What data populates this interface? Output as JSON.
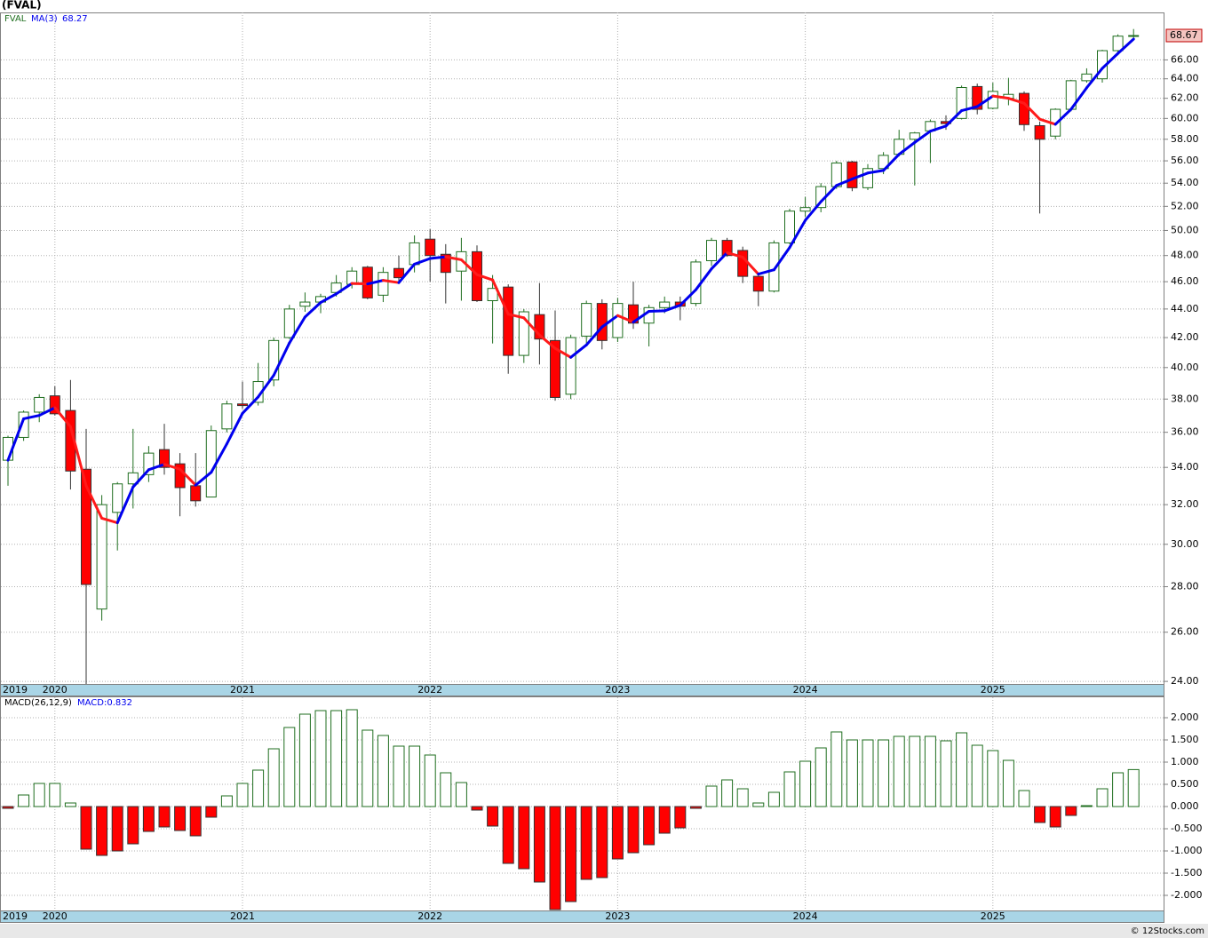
{
  "chart_data": [
    {
      "type": "candlestick",
      "title": "(FVAL)",
      "name": "FVAL",
      "log": true,
      "grid": true,
      "up_color": "#1f6e1f",
      "down_color": "#ff0000",
      "categories": [
        "2019",
        null,
        null,
        "2020",
        null,
        null,
        null,
        null,
        null,
        null,
        null,
        null,
        null,
        null,
        null,
        "2021",
        null,
        null,
        null,
        null,
        null,
        null,
        null,
        null,
        null,
        null,
        null,
        "2022",
        null,
        null,
        null,
        null,
        null,
        null,
        null,
        null,
        null,
        null,
        null,
        "2023",
        null,
        null,
        null,
        null,
        null,
        null,
        null,
        null,
        null,
        null,
        null,
        "2024",
        null,
        null,
        null,
        null,
        null,
        null,
        null,
        null,
        null,
        null,
        null,
        "2025",
        null,
        null,
        null,
        null,
        null,
        null,
        null,
        null,
        null
      ],
      "open": [
        34.4,
        35.7,
        37.2,
        38.2,
        37.3,
        33.9,
        27.0,
        31.6,
        33.1,
        33.6,
        35.0,
        34.2,
        33.0,
        32.4,
        36.2,
        37.7,
        37.8,
        39.2,
        42.0,
        44.2,
        44.5,
        45.2,
        45.8,
        47.1,
        45.0,
        47.0,
        47.3,
        49.3,
        48.1,
        46.8,
        48.3,
        44.6,
        45.6,
        40.8,
        43.6,
        41.8,
        38.3,
        42.1,
        44.4,
        42.0,
        44.3,
        43.0,
        44.1,
        44.5,
        44.4,
        47.6,
        49.2,
        48.4,
        46.4,
        45.3,
        49.0,
        51.6,
        51.9,
        53.7,
        55.9,
        53.6,
        55.3,
        56.6,
        58.0,
        58.8,
        59.7,
        60.0,
        63.2,
        61.0,
        62.0,
        62.5,
        59.3,
        58.3,
        60.9,
        63.8,
        64.0,
        67.0,
        68.6
      ],
      "high": [
        35.8,
        37.3,
        38.3,
        38.8,
        39.2,
        36.2,
        32.5,
        33.2,
        36.2,
        35.2,
        36.5,
        34.8,
        34.8,
        36.4,
        37.9,
        39.1,
        40.3,
        42.0,
        44.3,
        45.2,
        45.1,
        46.5,
        47.1,
        47.2,
        47.1,
        48.0,
        49.6,
        50.1,
        48.9,
        49.4,
        48.8,
        46.5,
        45.8,
        44.0,
        45.9,
        43.9,
        42.2,
        44.6,
        44.7,
        44.8,
        46.0,
        44.3,
        44.9,
        44.9,
        47.7,
        49.4,
        49.4,
        48.7,
        46.5,
        49.2,
        51.8,
        52.8,
        54.0,
        56.0,
        56.0,
        55.7,
        56.8,
        58.9,
        58.7,
        59.9,
        60.3,
        63.3,
        63.5,
        63.6,
        64.1,
        62.7,
        59.7,
        61.0,
        63.9,
        65.1,
        67.1,
        68.8,
        69.4
      ],
      "low": [
        33.0,
        35.5,
        36.6,
        37.0,
        32.8,
        23.9,
        26.5,
        29.7,
        31.8,
        33.2,
        33.6,
        31.4,
        31.9,
        32.4,
        36.0,
        37.4,
        37.6,
        38.8,
        41.9,
        43.8,
        43.7,
        44.9,
        45.5,
        44.7,
        44.5,
        45.9,
        46.7,
        46.0,
        44.4,
        44.6,
        44.5,
        41.6,
        39.6,
        40.3,
        40.2,
        37.9,
        38.0,
        41.6,
        41.2,
        41.7,
        42.6,
        41.4,
        43.7,
        43.2,
        44.2,
        47.2,
        47.9,
        45.9,
        44.2,
        45.2,
        48.9,
        51.1,
        51.5,
        53.5,
        53.3,
        53.4,
        54.8,
        56.4,
        53.8,
        55.8,
        58.9,
        59.9,
        60.4,
        60.9,
        61.3,
        58.8,
        51.4,
        58.0,
        60.7,
        63.6,
        63.6,
        66.5,
        68.2
      ],
      "close": [
        35.7,
        37.2,
        38.1,
        37.1,
        33.8,
        28.1,
        32.0,
        33.1,
        33.7,
        34.8,
        34.0,
        32.9,
        32.2,
        36.1,
        37.7,
        37.6,
        39.1,
        41.8,
        44.0,
        44.5,
        44.9,
        45.9,
        46.8,
        44.8,
        46.7,
        46.3,
        49.0,
        48.0,
        46.7,
        48.3,
        44.6,
        45.5,
        40.8,
        43.8,
        41.9,
        38.1,
        42.0,
        44.4,
        41.8,
        44.4,
        43.0,
        44.1,
        44.5,
        44.2,
        47.5,
        49.2,
        48.0,
        46.4,
        45.3,
        49.0,
        51.6,
        51.9,
        53.7,
        55.8,
        53.6,
        55.3,
        56.5,
        58.0,
        58.6,
        59.7,
        59.5,
        63.1,
        60.9,
        62.7,
        62.4,
        59.4,
        58.0,
        60.9,
        63.8,
        64.5,
        67.0,
        68.6,
        68.67
      ],
      "ma": {
        "name": "MA(3)",
        "up_color": "#0000ee",
        "down_color": "#ff1a1a",
        "values": [
          34.4,
          36.8,
          37.0,
          37.47,
          36.33,
          33.0,
          31.3,
          31.07,
          32.93,
          33.87,
          34.17,
          33.9,
          33.03,
          33.73,
          35.33,
          37.13,
          38.13,
          39.5,
          41.63,
          43.43,
          44.47,
          45.1,
          45.87,
          45.83,
          46.1,
          45.93,
          47.33,
          47.77,
          47.9,
          47.67,
          46.53,
          46.13,
          43.63,
          43.37,
          42.17,
          41.27,
          40.67,
          41.5,
          42.73,
          43.53,
          43.07,
          43.83,
          43.87,
          44.27,
          45.4,
          46.97,
          48.23,
          47.87,
          46.57,
          46.9,
          48.63,
          50.83,
          52.4,
          53.8,
          54.37,
          54.9,
          55.13,
          56.6,
          57.7,
          58.77,
          59.27,
          60.77,
          61.17,
          62.23,
          62.0,
          61.5,
          59.93,
          59.43,
          60.9,
          63.07,
          65.1,
          66.7,
          68.27
        ]
      },
      "ylim": [
        23.9,
        71.3
      ],
      "yticks": [
        {
          "value": 24,
          "label": "24.00"
        },
        {
          "value": 26,
          "label": "26.00"
        },
        {
          "value": 28,
          "label": "28.00"
        },
        {
          "value": 30,
          "label": "30.00"
        },
        {
          "value": 32,
          "label": "32.00"
        },
        {
          "value": 34,
          "label": "34.00"
        },
        {
          "value": 36,
          "label": "36.00"
        },
        {
          "value": 38,
          "label": "38.00"
        },
        {
          "value": 40,
          "label": "40.00"
        },
        {
          "value": 42,
          "label": "42.00"
        },
        {
          "value": 44,
          "label": "44.00"
        },
        {
          "value": 46,
          "label": "46.00"
        },
        {
          "value": 48,
          "label": "48.00"
        },
        {
          "value": 50,
          "label": "50.00"
        },
        {
          "value": 52,
          "label": "52.00"
        },
        {
          "value": 54,
          "label": "54.00"
        },
        {
          "value": 56,
          "label": "56.00"
        },
        {
          "value": 58,
          "label": "58.00"
        },
        {
          "value": 60,
          "label": "60.00"
        },
        {
          "value": 62,
          "label": "62.00"
        },
        {
          "value": 64,
          "label": "64.00"
        },
        {
          "value": 66,
          "label": "66.00"
        }
      ]
    },
    {
      "type": "bar",
      "title": "MACD(26,12,9)",
      "legend_label": "MACD:0.832",
      "grid": true,
      "up_color": "#1f6e1f",
      "down_color": "#ff0000",
      "categories": [
        "2019",
        null,
        null,
        "2020",
        null,
        null,
        null,
        null,
        null,
        null,
        null,
        null,
        null,
        null,
        null,
        "2021",
        null,
        null,
        null,
        null,
        null,
        null,
        null,
        null,
        null,
        null,
        null,
        "2022",
        null,
        null,
        null,
        null,
        null,
        null,
        null,
        null,
        null,
        null,
        null,
        "2023",
        null,
        null,
        null,
        null,
        null,
        null,
        null,
        null,
        null,
        null,
        null,
        "2024",
        null,
        null,
        null,
        null,
        null,
        null,
        null,
        null,
        null,
        null,
        null,
        "2025",
        null,
        null,
        null,
        null,
        null,
        null,
        null,
        null,
        null
      ],
      "values": [
        -0.04,
        0.26,
        0.52,
        0.52,
        0.08,
        -0.96,
        -1.1,
        -1.0,
        -0.84,
        -0.56,
        -0.46,
        -0.54,
        -0.66,
        -0.24,
        0.24,
        0.52,
        0.82,
        1.3,
        1.78,
        2.08,
        2.16,
        2.16,
        2.18,
        1.72,
        1.6,
        1.36,
        1.36,
        1.16,
        0.76,
        0.54,
        -0.08,
        -0.44,
        -1.28,
        -1.4,
        -1.7,
        -2.32,
        -2.14,
        -1.64,
        -1.6,
        -1.18,
        -1.04,
        -0.86,
        -0.6,
        -0.48,
        -0.04,
        0.46,
        0.6,
        0.4,
        0.08,
        0.32,
        0.78,
        1.02,
        1.32,
        1.68,
        1.5,
        1.5,
        1.5,
        1.58,
        1.58,
        1.58,
        1.48,
        1.66,
        1.38,
        1.26,
        1.04,
        0.36,
        -0.36,
        -0.46,
        -0.2,
        0.02,
        0.4,
        0.76,
        0.832
      ],
      "ylim": [
        -2.34,
        2.46
      ],
      "yticks": [
        {
          "value": -2,
          "label": "-2.000"
        },
        {
          "value": -1.5,
          "label": "-1.500"
        },
        {
          "value": -1,
          "label": "-1.000"
        },
        {
          "value": -0.5,
          "label": "-0.500"
        },
        {
          "value": 0,
          "label": "0.000"
        },
        {
          "value": 0.5,
          "label": "0.500"
        },
        {
          "value": 1,
          "label": "1.000"
        },
        {
          "value": 1.5,
          "label": "1.500"
        },
        {
          "value": 2,
          "label": "2.000"
        }
      ]
    }
  ],
  "footer": "© 12Stocks.com"
}
